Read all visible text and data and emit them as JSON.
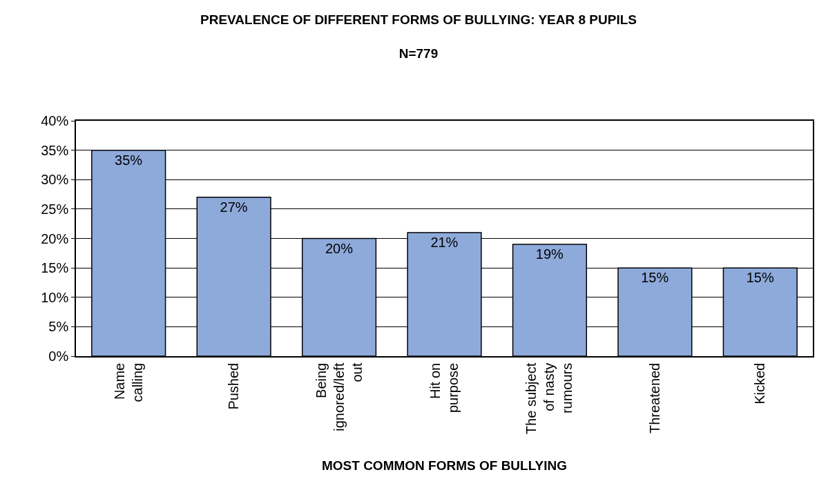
{
  "chart_data": {
    "type": "bar",
    "title": "PREVALENCE OF DIFFERENT FORMS OF BULLYING: YEAR 8 PUPILS",
    "subtitle": "N=779",
    "xlabel": "MOST COMMON FORMS OF BULLYING",
    "categories": [
      "Name calling",
      "Pushed",
      "Being ignored/left out",
      "Hit on purpose",
      "The subject of nasty rumours",
      "Threatened",
      "Kicked"
    ],
    "values": [
      35,
      27,
      20,
      21,
      19,
      15,
      15
    ],
    "value_labels": [
      "35%",
      "27%",
      "20%",
      "21%",
      "19%",
      "15%",
      "15%"
    ],
    "color": "#8eaadb",
    "grid": "y",
    "ylim": [
      0,
      40
    ],
    "yticks": [
      {
        "value": 0,
        "label": "0%"
      },
      {
        "value": 5,
        "label": "5%"
      },
      {
        "value": 10,
        "label": "10%"
      },
      {
        "value": 15,
        "label": "15%"
      },
      {
        "value": 20,
        "label": "20%"
      },
      {
        "value": 25,
        "label": "25%"
      },
      {
        "value": 30,
        "label": "30%"
      },
      {
        "value": 35,
        "label": "35%"
      },
      {
        "value": 40,
        "label": "40%"
      }
    ]
  }
}
